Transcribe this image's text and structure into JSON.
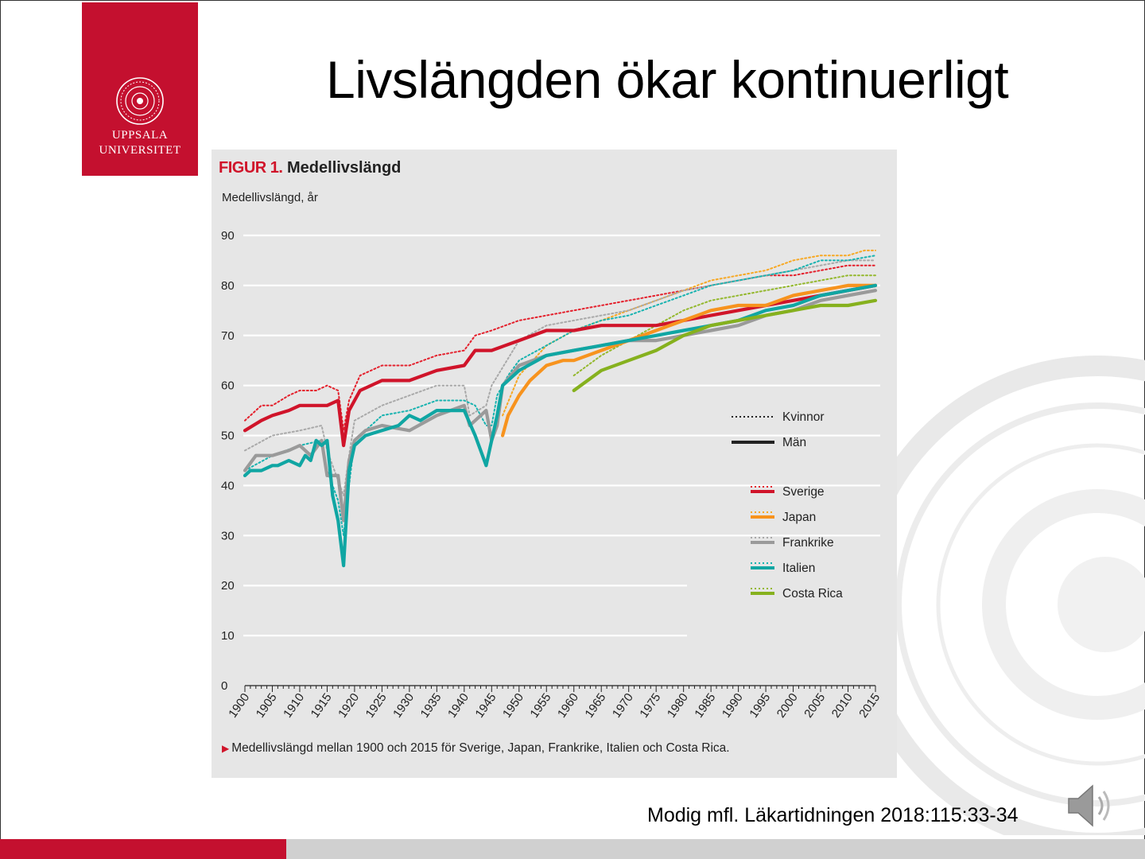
{
  "slide": {
    "title": "Livslängden ökar kontinuerligt",
    "citation": "Modig mfl. Läkartidningen 2018:115:33-34"
  },
  "logo": {
    "line1": "UPPSALA",
    "line2": "UNIVERSITET",
    "brand_color": "#c4102f"
  },
  "icons": {
    "speaker": "speaker-icon",
    "seal": "university-seal"
  },
  "figure": {
    "label": "FIGUR 1.",
    "title": "Medellivslängd",
    "caption": "Medellivslängd mellan 1900 och 2015 för Sverige, Japan, Frankrike, Italien och Costa Rica."
  },
  "chart_data": {
    "type": "line",
    "ylabel": "Medellivslängd, år",
    "ylim": [
      0,
      90
    ],
    "yticks": [
      0,
      10,
      20,
      30,
      40,
      50,
      60,
      70,
      80,
      90
    ],
    "xlim": [
      1900,
      2015
    ],
    "xticks": [
      1900,
      1905,
      1910,
      1915,
      1920,
      1925,
      1930,
      1935,
      1940,
      1945,
      1950,
      1955,
      1960,
      1965,
      1970,
      1975,
      1980,
      1985,
      1990,
      1995,
      2000,
      2005,
      2010,
      2015
    ],
    "grid": true,
    "legend": {
      "placement": "right",
      "style_entries": [
        {
          "label": "Kvinnor",
          "style": "dotted"
        },
        {
          "label": "Män",
          "style": "solid"
        }
      ],
      "country_entries": [
        "Sverige",
        "Japan",
        "Frankrike",
        "Italien",
        "Costa Rica"
      ]
    },
    "series": [
      {
        "name": "Sverige",
        "sex": "Kvinnor",
        "color": "#e4202c",
        "x": [
          1900,
          1903,
          1905,
          1908,
          1910,
          1913,
          1915,
          1917,
          1918,
          1919,
          1921,
          1925,
          1930,
          1935,
          1940,
          1942,
          1945,
          1950,
          1955,
          1960,
          1965,
          1970,
          1975,
          1980,
          1985,
          1990,
          1995,
          2000,
          2005,
          2010,
          2015
        ],
        "y": [
          53,
          56,
          56,
          58,
          59,
          59,
          60,
          59,
          51,
          57,
          62,
          64,
          64,
          66,
          67,
          70,
          71,
          73,
          74,
          75,
          76,
          77,
          78,
          79,
          80,
          81,
          82,
          82,
          83,
          84,
          84
        ]
      },
      {
        "name": "Sverige",
        "sex": "Män",
        "color": "#d0142a",
        "x": [
          1900,
          1903,
          1905,
          1908,
          1910,
          1913,
          1915,
          1917,
          1918,
          1919,
          1921,
          1925,
          1930,
          1935,
          1940,
          1942,
          1945,
          1950,
          1955,
          1960,
          1965,
          1970,
          1975,
          1980,
          1985,
          1990,
          1995,
          2000,
          2005,
          2010,
          2015
        ],
        "y": [
          51,
          53,
          54,
          55,
          56,
          56,
          56,
          57,
          48,
          55,
          59,
          61,
          61,
          63,
          64,
          67,
          67,
          69,
          71,
          71,
          72,
          72,
          72,
          73,
          74,
          75,
          76,
          77,
          78,
          79,
          80
        ]
      },
      {
        "name": "Japan",
        "sex": "Kvinnor",
        "color": "#f7a823",
        "x": [
          1947,
          1950,
          1955,
          1960,
          1965,
          1970,
          1975,
          1980,
          1985,
          1990,
          1995,
          2000,
          2005,
          2010,
          2013,
          2015
        ],
        "y": [
          54,
          62,
          68,
          71,
          73,
          75,
          77,
          79,
          81,
          82,
          83,
          85,
          86,
          86,
          87,
          87
        ]
      },
      {
        "name": "Japan",
        "sex": "Män",
        "color": "#f7931e",
        "x": [
          1947,
          1948,
          1950,
          1952,
          1955,
          1958,
          1960,
          1965,
          1970,
          1975,
          1980,
          1985,
          1990,
          1995,
          2000,
          2005,
          2010,
          2015
        ],
        "y": [
          50,
          54,
          58,
          61,
          64,
          65,
          65,
          67,
          69,
          71,
          73,
          75,
          76,
          76,
          78,
          79,
          80,
          80
        ]
      },
      {
        "name": "Frankrike",
        "sex": "Kvinnor",
        "color": "#a9a9a9",
        "x": [
          1900,
          1905,
          1910,
          1914,
          1915,
          1918,
          1919,
          1920,
          1925,
          1930,
          1935,
          1940,
          1941,
          1944,
          1945,
          1950,
          1955,
          1960,
          1965,
          1970,
          1975,
          1980,
          1985,
          1990,
          1995,
          2000,
          2005,
          2010,
          2015
        ],
        "y": [
          47,
          50,
          51,
          52,
          47,
          38,
          46,
          53,
          56,
          58,
          60,
          60,
          54,
          56,
          60,
          69,
          72,
          73,
          74,
          75,
          77,
          79,
          80,
          81,
          82,
          83,
          84,
          85,
          85
        ]
      },
      {
        "name": "Frankrike",
        "sex": "Män",
        "color": "#9a9a9a",
        "x": [
          1900,
          1902,
          1905,
          1908,
          1910,
          1912,
          1914,
          1915,
          1916,
          1917,
          1918,
          1919,
          1920,
          1922,
          1925,
          1930,
          1935,
          1940,
          1941,
          1943,
          1944,
          1945,
          1946,
          1947,
          1950,
          1955,
          1960,
          1965,
          1970,
          1975,
          1980,
          1985,
          1990,
          1995,
          2000,
          2005,
          2010,
          2015
        ],
        "y": [
          43,
          46,
          46,
          47,
          48,
          46,
          49,
          42,
          42,
          42,
          33,
          45,
          49,
          51,
          52,
          51,
          54,
          56,
          52,
          54,
          55,
          49,
          52,
          60,
          64,
          66,
          67,
          68,
          69,
          69,
          70,
          71,
          72,
          74,
          75,
          77,
          78,
          79
        ]
      },
      {
        "name": "Italien",
        "sex": "Kvinnor",
        "color": "#18b3b0",
        "x": [
          1900,
          1905,
          1910,
          1914,
          1915,
          1917,
          1918,
          1919,
          1920,
          1925,
          1930,
          1935,
          1940,
          1942,
          1944,
          1945,
          1946,
          1948,
          1950,
          1955,
          1960,
          1965,
          1970,
          1975,
          1980,
          1985,
          1990,
          1995,
          2000,
          2005,
          2010,
          2015
        ],
        "y": [
          43,
          46,
          48,
          49,
          43,
          37,
          30,
          40,
          49,
          54,
          55,
          57,
          57,
          56,
          52,
          52,
          58,
          62,
          65,
          68,
          71,
          73,
          74,
          76,
          78,
          80,
          81,
          82,
          83,
          85,
          85,
          86
        ]
      },
      {
        "name": "Italien",
        "sex": "Män",
        "color": "#10a6a3",
        "x": [
          1900,
          1901,
          1903,
          1905,
          1906,
          1908,
          1910,
          1911,
          1912,
          1913,
          1914,
          1915,
          1916,
          1917,
          1918,
          1919,
          1920,
          1922,
          1925,
          1928,
          1930,
          1932,
          1935,
          1938,
          1940,
          1942,
          1943,
          1944,
          1945,
          1946,
          1947,
          1950,
          1955,
          1960,
          1965,
          1970,
          1975,
          1980,
          1985,
          1990,
          1995,
          2000,
          2005,
          2010,
          2015
        ],
        "y": [
          42,
          43,
          43,
          44,
          44,
          45,
          44,
          46,
          45,
          49,
          48,
          49,
          38,
          33,
          24,
          43,
          48,
          50,
          51,
          52,
          54,
          53,
          55,
          55,
          55,
          50,
          47,
          44,
          49,
          54,
          60,
          63,
          66,
          67,
          68,
          69,
          70,
          71,
          72,
          73,
          75,
          76,
          78,
          79,
          80
        ]
      },
      {
        "name": "Costa Rica",
        "sex": "Kvinnor",
        "color": "#94b82e",
        "x": [
          1960,
          1965,
          1970,
          1975,
          1980,
          1985,
          1990,
          1995,
          2000,
          2005,
          2010,
          2015
        ],
        "y": [
          62,
          66,
          69,
          72,
          75,
          77,
          78,
          79,
          80,
          81,
          82,
          82
        ]
      },
      {
        "name": "Costa Rica",
        "sex": "Män",
        "color": "#86b11e",
        "x": [
          1960,
          1965,
          1970,
          1975,
          1980,
          1985,
          1990,
          1995,
          2000,
          2005,
          2010,
          2015
        ],
        "y": [
          59,
          63,
          65,
          67,
          70,
          72,
          73,
          74,
          75,
          76,
          76,
          77
        ]
      }
    ]
  }
}
